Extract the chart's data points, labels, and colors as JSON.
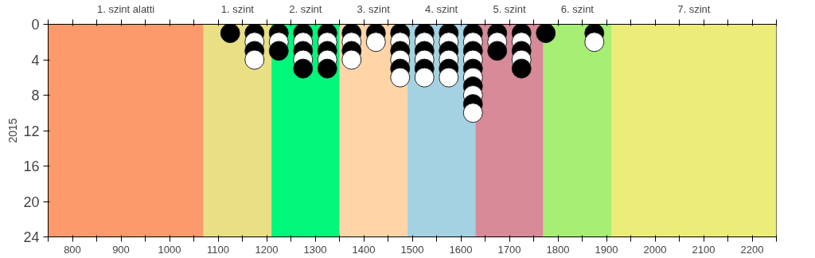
{
  "chart_data": {
    "type": "scatter",
    "ylabel": "2015",
    "marker": "circle",
    "grid": "x",
    "xlim": [
      750,
      2250
    ],
    "ylim": [
      24,
      0
    ],
    "xticks": [
      {
        "value": 750,
        "label": null
      },
      800,
      {
        "value": 850,
        "label": null
      },
      900,
      {
        "value": 950,
        "label": null
      },
      1000,
      {
        "value": 1050,
        "label": null
      },
      1100,
      {
        "value": 1150,
        "label": null
      },
      1200,
      {
        "value": 1250,
        "label": null
      },
      1300,
      {
        "value": 1350,
        "label": null
      },
      1400,
      {
        "value": 1450,
        "label": null
      },
      1500,
      {
        "value": 1550,
        "label": null
      },
      1600,
      {
        "value": 1650,
        "label": null
      },
      1700,
      {
        "value": 1750,
        "label": null
      },
      1800,
      {
        "value": 1850,
        "label": null
      },
      1900,
      {
        "value": 1950,
        "label": null
      },
      2000,
      {
        "value": 2050,
        "label": null
      },
      2100,
      {
        "value": 2150,
        "label": null
      },
      2200,
      {
        "value": 2250,
        "label": null
      }
    ],
    "yticks": [
      0,
      4,
      8,
      12,
      16,
      20,
      24
    ],
    "bands": [
      {
        "axis": "x",
        "from": 750,
        "to": 1070,
        "label": "1. szint alatti",
        "color": "#fd9a6c"
      },
      {
        "axis": "x",
        "from": 1070,
        "to": 1210,
        "label": "1. szint",
        "color": "#e9df84"
      },
      {
        "axis": "x",
        "from": 1210,
        "to": 1350,
        "label": "2. szint",
        "color": "#00f77a"
      },
      {
        "axis": "x",
        "from": 1350,
        "to": 1490,
        "label": "3. szint",
        "color": "#ffd5a8"
      },
      {
        "axis": "x",
        "from": 1490,
        "to": 1630,
        "label": "4. szint",
        "color": "#a4d2e2"
      },
      {
        "axis": "x",
        "from": 1630,
        "to": 1770,
        "label": "5. szint",
        "color": "#d88a99"
      },
      {
        "axis": "x",
        "from": 1770,
        "to": 1910,
        "label": "6. szint",
        "color": "#a6ee74"
      },
      {
        "axis": "x",
        "from": 1910,
        "to": 2250,
        "label": "7. szint",
        "color": "#ecec78"
      }
    ],
    "series": [
      {
        "color": "#000000",
        "x": [
          1125,
          1175,
          1175,
          1225,
          1225,
          1275,
          1275,
          1275,
          1325,
          1325,
          1325,
          1375,
          1375,
          1425,
          1475,
          1475,
          1475,
          1525,
          1525,
          1525,
          1575,
          1575,
          1575,
          1625,
          1625,
          1625,
          1625,
          1625,
          1675,
          1675,
          1725,
          1725,
          1725,
          1775,
          1875
        ],
        "values": [
          1,
          1,
          3,
          1,
          3,
          1,
          3,
          5,
          1,
          3,
          5,
          1,
          3,
          1,
          1,
          3,
          5,
          1,
          3,
          5,
          1,
          3,
          5,
          1,
          3,
          5,
          7,
          9,
          1,
          3,
          1,
          3,
          5,
          1,
          1
        ]
      },
      {
        "color": "#ffffff",
        "x": [
          1175,
          1175,
          1225,
          1275,
          1275,
          1325,
          1325,
          1375,
          1375,
          1425,
          1475,
          1475,
          1475,
          1525,
          1525,
          1525,
          1575,
          1575,
          1575,
          1625,
          1625,
          1625,
          1625,
          1625,
          1675,
          1725,
          1725,
          1875
        ],
        "values": [
          2,
          4,
          2,
          2,
          4,
          2,
          4,
          2,
          4,
          2,
          2,
          4,
          6,
          2,
          4,
          6,
          2,
          4,
          6,
          2,
          4,
          6,
          8,
          10,
          2,
          2,
          4,
          2
        ]
      }
    ]
  }
}
